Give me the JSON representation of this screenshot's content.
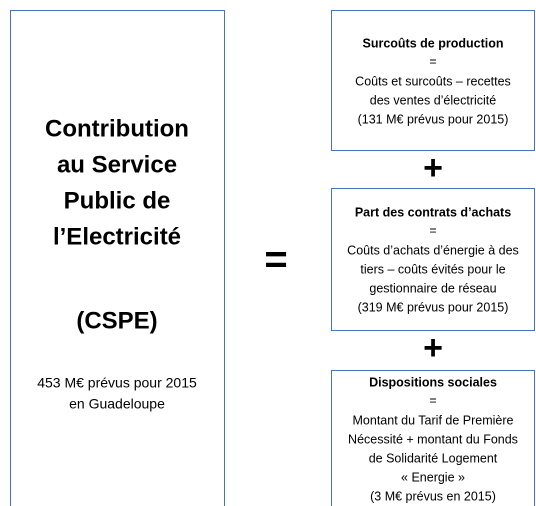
{
  "left": {
    "title_lines": [
      "Contribution",
      "au Service",
      "Public de",
      "l’Electricité"
    ],
    "acronym": "(CSPE)",
    "note_lines": [
      "453 M€ prévus pour 2015",
      "en Guadeloupe"
    ]
  },
  "equals": "=",
  "plus": [
    "+",
    "+"
  ],
  "boxes": [
    {
      "title": "Surcoûts de production",
      "eq": "=",
      "lines": [
        "Coûts et surcoûts – recettes",
        "des ventes d’électricité",
        "(131 M€ prévus pour 2015)"
      ]
    },
    {
      "title": "Part des contrats d’achats",
      "eq": "=",
      "lines": [
        "Coûts d’achats d’énergie à des",
        "tiers – coûts évités pour le",
        "gestionnaire de réseau",
        "(319 M€ prévus pour 2015)"
      ]
    },
    {
      "title": "Dispositions sociales",
      "eq": "=",
      "lines": [
        "Montant du Tarif de Première",
        "Nécessité + montant du Fonds",
        "de Solidarité Logement",
        "« Energie »",
        "(3 M€ prévus en 2015)"
      ]
    }
  ]
}
